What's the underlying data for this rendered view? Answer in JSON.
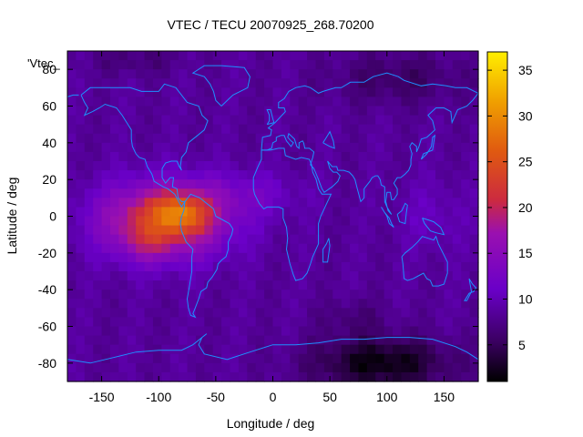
{
  "chart_data": {
    "type": "heatmap",
    "title": "VTEC / TECU 20070925_268.70200",
    "xlabel": "Longitude / deg",
    "ylabel": "Latitude / deg",
    "xlim": [
      -180,
      180
    ],
    "ylim": [
      -90,
      90
    ],
    "x_ticks": [
      -150,
      -100,
      -50,
      0,
      50,
      100,
      150
    ],
    "y_ticks": [
      -80,
      -60,
      -40,
      -20,
      0,
      20,
      40,
      60,
      80
    ],
    "colorbar": {
      "min": 1,
      "max": 37,
      "ticks": [
        5,
        10,
        15,
        20,
        25,
        30,
        35
      ]
    },
    "key_label": "'Vtec_",
    "grid": false,
    "colors": {
      "coastline": "#1e90ff",
      "low": "#000000",
      "mid": "#7700ee",
      "high": "#ffee00"
    },
    "peak": {
      "lon": -85,
      "lat": 0,
      "value": 37
    }
  }
}
